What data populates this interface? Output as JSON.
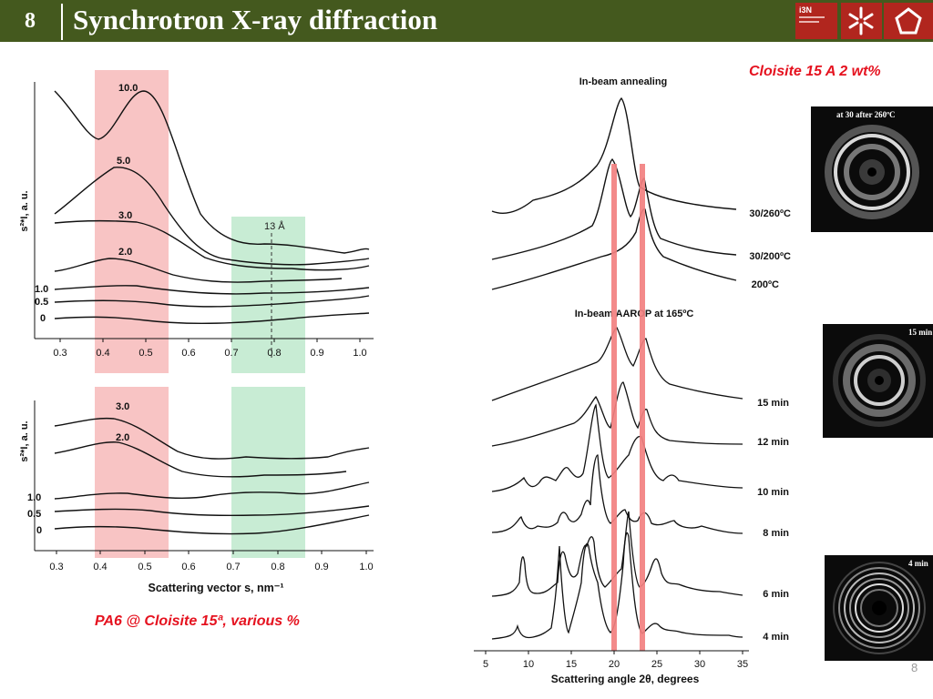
{
  "header": {
    "slide_number": "8",
    "title": "Synchrotron X-ray diffraction",
    "logo_text": "i3N",
    "bg_color": "#44591e",
    "logo_color": "#b1261e"
  },
  "left_figure": {
    "caption": "PA6 @ Cloisite 15ª, various %",
    "top_panel": {
      "ylabel": "s²*I, a. u.",
      "curve_labels": [
        "10.0",
        "5.0",
        "3.0",
        "2.0",
        "1.0",
        "0.5",
        "0"
      ],
      "annotation": "13 Å",
      "xticks": [
        "0.3",
        "0.4",
        "0.5",
        "0.6",
        "0.7",
        "0.8",
        "0.9",
        "1.0"
      ]
    },
    "bottom_panel": {
      "ylabel": "s²*I, a. u.",
      "curve_labels": [
        "3.0",
        "2.0",
        "1.0",
        "0.5",
        "0"
      ],
      "xticks": [
        "0.3",
        "0.4",
        "0.5",
        "0.6",
        "0.7",
        "0.8",
        "0.9",
        "1.0"
      ],
      "xlabel": "Scattering vector s, nm⁻¹"
    }
  },
  "right_figure": {
    "caption": "Cloisite 15 A 2 wt%",
    "annealing_title": "In-beam annealing",
    "annealing_labels": [
      "30/260ºC",
      "30/200ºC",
      "200ºC"
    ],
    "aarop_title": "In-beam AAROP at 165ºC",
    "aarop_labels": [
      "15 min",
      "12 min",
      "10 min",
      "8 min",
      "6 min",
      "4 min"
    ],
    "xticks": [
      "5",
      "10",
      "15",
      "20",
      "25",
      "30",
      "35"
    ],
    "xlabel": "Scattering angle 2θ, degrees",
    "highlight_color": "#f28080"
  },
  "thumbnails": [
    {
      "label": "at 30 after 260ºC"
    },
    {
      "label": "15 min"
    },
    {
      "label": "4 min"
    }
  ],
  "page_number": "8"
}
